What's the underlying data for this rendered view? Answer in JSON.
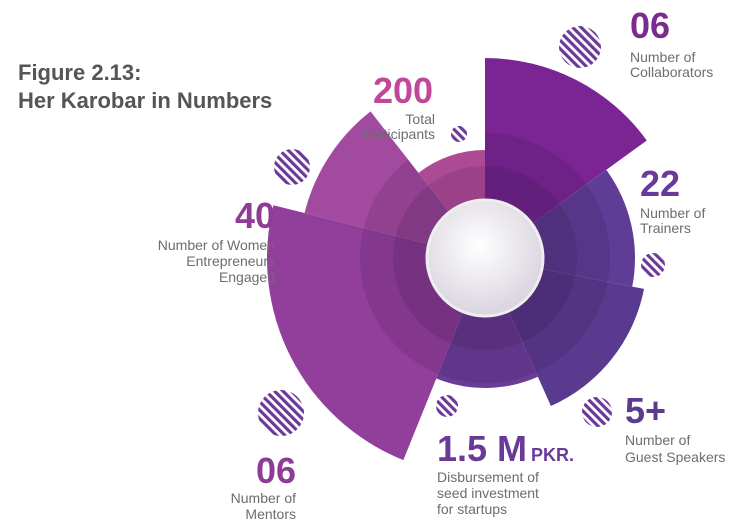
{
  "title": [
    "Figure 2.13:",
    "Her Karobar in Numbers"
  ],
  "items": [
    {
      "number": "06",
      "label": [
        "Number of",
        "Collaborators"
      ]
    },
    {
      "number": "200",
      "label": [
        "Total",
        "Participants"
      ]
    },
    {
      "number": "22",
      "label": [
        "Number of",
        "Trainers"
      ]
    },
    {
      "number": "40",
      "label": [
        "Number of Women",
        "Entrepreneurs",
        "Engaged"
      ]
    },
    {
      "number": "5+",
      "label": [
        "Number of",
        "Guest Speakers"
      ]
    },
    {
      "number": "1.5 M",
      "unit": "PKR.",
      "label": [
        "Disbursement of",
        "seed investment",
        "for startups"
      ]
    },
    {
      "number": "06",
      "label": [
        "Number of",
        "Mentors"
      ]
    }
  ]
}
